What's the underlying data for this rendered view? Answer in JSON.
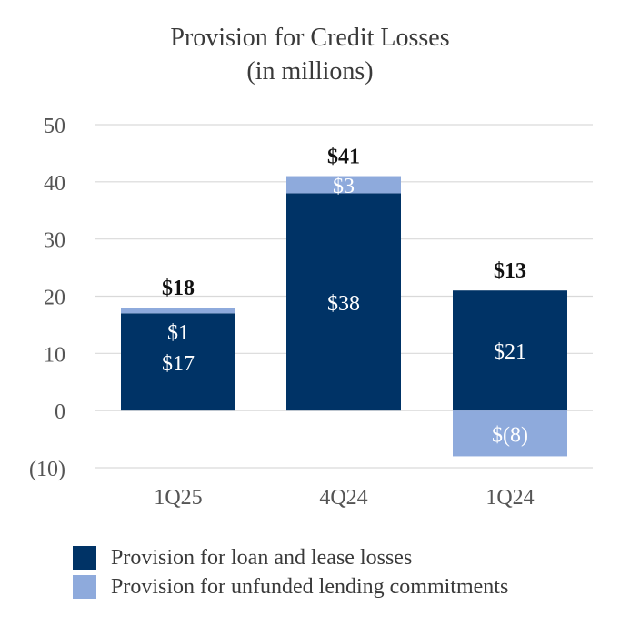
{
  "chart_data": {
    "type": "bar",
    "stacked": true,
    "title": "Provision for Credit Losses",
    "subtitle": "(in millions)",
    "categories": [
      "1Q25",
      "4Q24",
      "1Q24"
    ],
    "series": [
      {
        "name": "Provision for loan and lease losses",
        "color": "#003366",
        "values": [
          17,
          38,
          21
        ],
        "labels": [
          "$17",
          "$38",
          "$21"
        ]
      },
      {
        "name": "Provision for unfunded lending commitments",
        "color": "#8eaadc",
        "values": [
          1,
          3,
          -8
        ],
        "labels": [
          "$1",
          "$3",
          "$(8)"
        ]
      }
    ],
    "totals": [
      18,
      41,
      13
    ],
    "total_labels": [
      "$18",
      "$41",
      "$13"
    ],
    "yticks": [
      50,
      40,
      30,
      20,
      10,
      0,
      -10
    ],
    "ytick_labels": [
      "50",
      "40",
      "30",
      "20",
      "10",
      "0",
      "(10)"
    ],
    "ylim": [
      -10,
      50
    ],
    "grid": true,
    "legend_position": "bottom-left"
  }
}
